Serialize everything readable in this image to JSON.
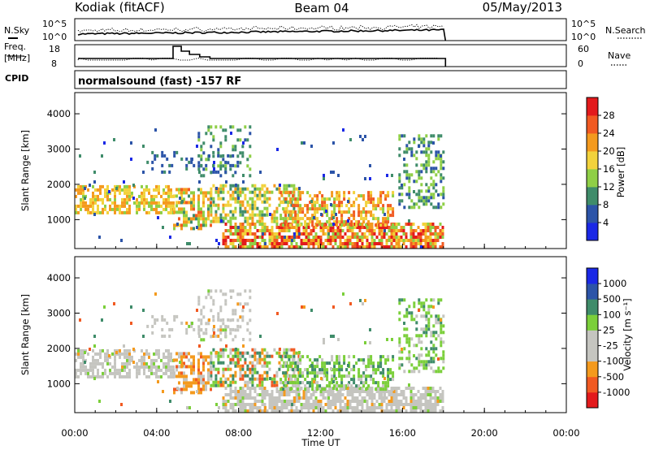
{
  "header": {
    "station": "Kodiak (fitACF)",
    "beam": "Beam 04",
    "date": "05/May/2013"
  },
  "panel_labels": {
    "nsky": "N.Sky",
    "nsearch": "N.Search",
    "freq_line1": "Freq.",
    "freq_line2": "[MHz]",
    "nave": "Nave",
    "cpid": "CPID",
    "cpid_value": "normalsound (fast) -157 RF"
  },
  "noise_axis": {
    "left_ticks": [
      "10^5",
      "10^0"
    ],
    "right_ticks": [
      "10^5",
      "10^0"
    ]
  },
  "freq_axis": {
    "left_ticks": [
      "18",
      "8"
    ],
    "right_ticks": [
      "60",
      "0"
    ]
  },
  "colors": {
    "power": [
      "#1a28e6",
      "#2c54a8",
      "#3f8c6a",
      "#8fcf46",
      "#f2d23c",
      "#f49a1e",
      "#f15a22",
      "#e31a1c"
    ],
    "velocity": [
      "#e31a1c",
      "#f15a22",
      "#f49a1e",
      "#c5c5c0",
      "#c5c5c0",
      "#7bcf3a",
      "#3f8c6a",
      "#2c54a8",
      "#1a28e6"
    ]
  },
  "chart_data": [
    {
      "type": "heatmap",
      "name": "power",
      "ylabel": "Slant Range [km]",
      "yticks": [
        1000,
        2000,
        3000,
        4000
      ],
      "ylim": [
        180,
        4600
      ],
      "xlim": [
        0,
        24
      ],
      "colorbar_label": "Power [dB]",
      "colorbar_ticks": [
        "28",
        "24",
        "20",
        "16",
        "12",
        "8",
        "4"
      ],
      "colorbar_range": [
        0,
        32
      ]
    },
    {
      "type": "heatmap",
      "name": "velocity",
      "ylabel": "Slant Range [km]",
      "yticks": [
        1000,
        2000,
        3000,
        4000
      ],
      "ylim": [
        180,
        4600
      ],
      "xlim": [
        0,
        24
      ],
      "colorbar_label": "Velocity [m s⁻¹]",
      "colorbar_ticks": [
        "1000",
        "500",
        "100",
        "25",
        "-25",
        "-100",
        "-500",
        "-1000"
      ]
    }
  ],
  "xaxis": {
    "label": "Time UT",
    "ticks": [
      "00:00",
      "04:00",
      "08:00",
      "12:00",
      "16:00",
      "20:00",
      "00:00"
    ]
  }
}
